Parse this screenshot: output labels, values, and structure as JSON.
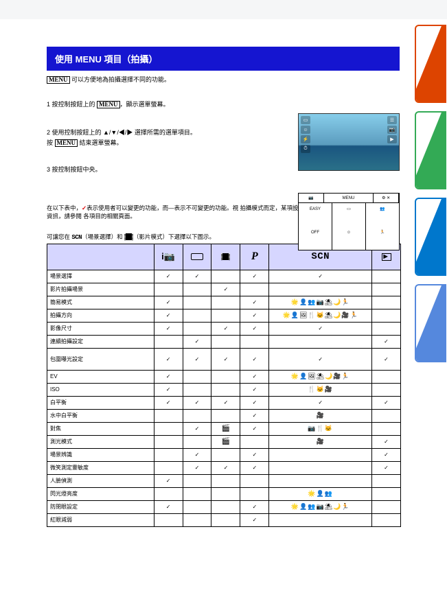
{
  "title": "使用 MENU 項目（拍攝）",
  "intro_lines": [
    "可以方便地為拍攝選擇不同的功能。",
    "1 按控制按鈕上的 MENU，顯示選單螢幕。",
    "2 使用控制按鈕上的 ▲/▼/◀/▶ 選擇所需的選單項目。",
    "3 按控制按鈕中央。",
    "在以下表中，✓表示使用者可以變更的功能，而—表示不可變更的功能。視",
    "拍攝模式而定，某項設定可能是固定的或受到限制。如需詳細資訊，請參閱",
    "各項目的相關頁面。",
    "可讓您在        （場景選擇）和        （影片模式）下選擇以下圖示。"
  ],
  "columns": {
    "ia": "i📷",
    "pano": "▭",
    "movie": "film",
    "p": "P",
    "scn": "SCN",
    "easy": "easy"
  },
  "rows": [
    {
      "label": "場景選擇",
      "ia": "✓",
      "pano": "✓",
      "movie": "",
      "p": "✓",
      "scn": "✓",
      "easy": ""
    },
    {
      "label": "影片拍攝場景",
      "ia": "",
      "pano": "",
      "movie": "✓",
      "p": "",
      "scn": "",
      "easy": ""
    },
    {
      "label": "簡易模式",
      "ia": "✓",
      "pano": "",
      "movie": "",
      "p": "✓",
      "scn": "🌟👤👥📷⛱🌙🏃",
      "easy": ""
    },
    {
      "label": "拍攝方向",
      "ia": "✓",
      "pano": "",
      "movie": "",
      "p": "✓",
      "scn": "🌟👤🖼🍴🐱⛱🌙🎥🏃",
      "easy": ""
    },
    {
      "label": "影像尺寸",
      "ia": "✓",
      "pano": "",
      "movie": "✓",
      "p": "✓",
      "scn": "✓",
      "easy": ""
    },
    {
      "label": "連續拍攝設定",
      "ia": "",
      "pano": "✓",
      "movie": "",
      "p": "",
      "scn": "",
      "easy": "✓"
    },
    {
      "label": "包圍曝光設定",
      "ia": "✓",
      "pano": "✓",
      "movie": "✓",
      "p": "✓",
      "scn": "✓",
      "easy": "✓",
      "tall": true,
      "sublabel": ""
    },
    {
      "label": "EV",
      "ia": "✓",
      "pano": "",
      "movie": "",
      "p": "✓",
      "scn": "🌟👤🖼⛱🌙🎥🏃",
      "easy": ""
    },
    {
      "label": "ISO",
      "ia": "✓",
      "pano": "",
      "movie": "",
      "p": "✓",
      "scn": "🍴🐱🎥",
      "easy": ""
    },
    {
      "label": "白平衡",
      "ia": "✓",
      "pano": "✓",
      "movie": "✓",
      "p": "✓",
      "scn": "✓",
      "easy": "✓"
    },
    {
      "label": "水中白平衡",
      "ia": "",
      "pano": "",
      "movie": "",
      "p": "✓",
      "scn": "🎥",
      "easy": ""
    },
    {
      "label": "對焦",
      "ia": "",
      "pano": "✓",
      "movie": "🎬",
      "p": "✓",
      "scn": "📷🍴🐱",
      "easy": ""
    },
    {
      "label": "測光模式",
      "ia": "",
      "pano": "",
      "movie": "🎬",
      "p": "",
      "scn": "🎥",
      "easy": "✓"
    },
    {
      "label": "場景辨識",
      "ia": "",
      "pano": "✓",
      "movie": "",
      "p": "✓",
      "scn": "",
      "easy": "✓"
    },
    {
      "label": "微笑測定靈敏度",
      "ia": "",
      "pano": "✓",
      "movie": "✓",
      "p": "✓",
      "scn": "",
      "easy": "✓"
    },
    {
      "label": "人臉偵測",
      "ia": "✓",
      "pano": "",
      "movie": "",
      "p": "",
      "scn": "",
      "easy": ""
    },
    {
      "label": "閃光燈亮度",
      "ia": "",
      "pano": "",
      "movie": "",
      "p": "",
      "scn": "🌟👤👥",
      "easy": ""
    },
    {
      "label": "防閉眼設定",
      "ia": "✓",
      "pano": "",
      "movie": "",
      "p": "✓",
      "scn": "🌟👤👥📷⛱🌙🏃",
      "easy": ""
    },
    {
      "label": "紅眼減弱",
      "ia": "",
      "pano": "",
      "movie": "",
      "p": "✓",
      "scn": "",
      "easy": ""
    }
  ],
  "colors": {
    "title_bg": "#1515d0",
    "header_bg": "#d6d6ff",
    "check_red": "#dd0000",
    "tab1": "#d40",
    "tab2": "#3a5",
    "tab3": "#07c",
    "tab4": "#58d"
  }
}
